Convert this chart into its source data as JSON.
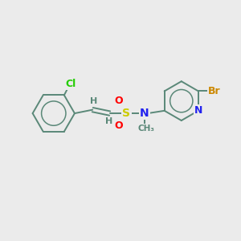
{
  "background_color": "#ebebeb",
  "bond_color": "#5a8878",
  "atom_colors": {
    "Cl": "#22cc00",
    "S": "#cccc00",
    "O": "#ff0000",
    "N": "#2222ee",
    "Br": "#cc8800",
    "H": "#5a8878",
    "C": "#5a8878",
    "Me": "#5a8878"
  },
  "font_size": 9,
  "figsize": [
    3.0,
    3.0
  ],
  "dpi": 100
}
